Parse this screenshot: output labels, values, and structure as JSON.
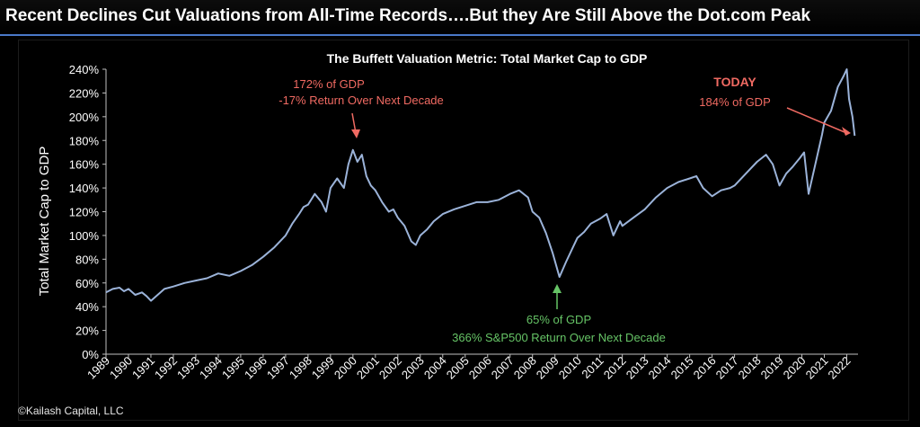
{
  "banner": {
    "title": "Recent Declines Cut Valuations from All-Time Records….But they Are Still Above the Dot.com Peak"
  },
  "copyright": "©Kailash Capital, LLC",
  "colors": {
    "line": "#9bb3d9",
    "red_annotation": "#f06a62",
    "green_annotation": "#66c466",
    "banner_rule": "#4a78c8",
    "background": "#000000"
  },
  "annotations": {
    "dotcom": {
      "line1": "172% of GDP",
      "line2": "-17% Return Over Next Decade"
    },
    "gfc": {
      "line1": "65% of GDP",
      "line2": "366% S&P500 Return Over Next Decade"
    },
    "today": {
      "line1": "TODAY",
      "line2": "184% of GDP"
    }
  },
  "chart_data": {
    "type": "line",
    "title": "The Buffett Valuation Metric: Total Market Cap to GDP",
    "xlabel": "",
    "ylabel": "Total Market Cap to GDP",
    "ylim": [
      0,
      240
    ],
    "xlim": [
      1989.0,
      2022.5
    ],
    "yticks": [
      "0%",
      "20%",
      "40%",
      "60%",
      "80%",
      "100%",
      "120%",
      "140%",
      "160%",
      "180%",
      "200%",
      "220%",
      "240%"
    ],
    "xticks": [
      "1989",
      "1990",
      "1991",
      "1992",
      "1993",
      "1994",
      "1995",
      "1996",
      "1997",
      "1998",
      "1999",
      "2000",
      "2001",
      "2002",
      "2003",
      "2004",
      "2005",
      "2006",
      "2007",
      "2008",
      "2009",
      "2010",
      "2011",
      "2012",
      "2013",
      "2014",
      "2015",
      "2016",
      "2017",
      "2018",
      "2019",
      "2020",
      "2021",
      "2022"
    ],
    "grid": false,
    "series": [
      {
        "x": [
          1989.0,
          1989.3,
          1989.6,
          1989.8,
          1990.0,
          1990.3,
          1990.6,
          1990.8,
          1991.0,
          1991.3,
          1991.6,
          1992.0,
          1992.5,
          1993.0,
          1993.5,
          1994.0,
          1994.5,
          1995.0,
          1995.5,
          1996.0,
          1996.5,
          1997.0,
          1997.3,
          1997.6,
          1997.8,
          1998.0,
          1998.3,
          1998.6,
          1998.8,
          1999.0,
          1999.3,
          1999.6,
          1999.8,
          2000.0,
          2000.2,
          2000.4,
          2000.6,
          2000.8,
          2001.0,
          2001.3,
          2001.6,
          2001.8,
          2002.0,
          2002.3,
          2002.6,
          2002.8,
          2003.0,
          2003.3,
          2003.6,
          2004.0,
          2004.5,
          2005.0,
          2005.5,
          2006.0,
          2006.5,
          2007.0,
          2007.4,
          2007.8,
          2008.0,
          2008.3,
          2008.6,
          2008.9,
          2009.2,
          2009.5,
          2009.8,
          2010.0,
          2010.3,
          2010.6,
          2011.0,
          2011.3,
          2011.6,
          2011.9,
          2012.0,
          2012.5,
          2013.0,
          2013.5,
          2014.0,
          2014.5,
          2015.0,
          2015.3,
          2015.6,
          2016.0,
          2016.4,
          2016.8,
          2017.0,
          2017.5,
          2018.0,
          2018.4,
          2018.7,
          2018.9,
          2019.0,
          2019.3,
          2019.6,
          2019.9,
          2020.1,
          2020.3,
          2020.6,
          2020.9,
          2021.0,
          2021.3,
          2021.6,
          2021.85,
          2022.0,
          2022.1,
          2022.25,
          2022.35
        ],
        "values": [
          52,
          55,
          56,
          53,
          55,
          50,
          52,
          49,
          45,
          50,
          55,
          57,
          60,
          62,
          64,
          68,
          66,
          70,
          75,
          82,
          90,
          100,
          110,
          118,
          124,
          126,
          135,
          128,
          120,
          140,
          148,
          140,
          160,
          172,
          162,
          168,
          150,
          142,
          138,
          128,
          120,
          122,
          115,
          108,
          95,
          92,
          100,
          105,
          112,
          118,
          122,
          125,
          128,
          128,
          130,
          135,
          138,
          132,
          120,
          115,
          102,
          85,
          65,
          78,
          90,
          98,
          103,
          110,
          114,
          118,
          100,
          112,
          108,
          115,
          122,
          132,
          140,
          145,
          148,
          150,
          140,
          133,
          138,
          140,
          142,
          152,
          162,
          168,
          160,
          148,
          142,
          152,
          158,
          165,
          170,
          135,
          160,
          185,
          195,
          205,
          225,
          234,
          240,
          215,
          200,
          184
        ]
      }
    ]
  }
}
